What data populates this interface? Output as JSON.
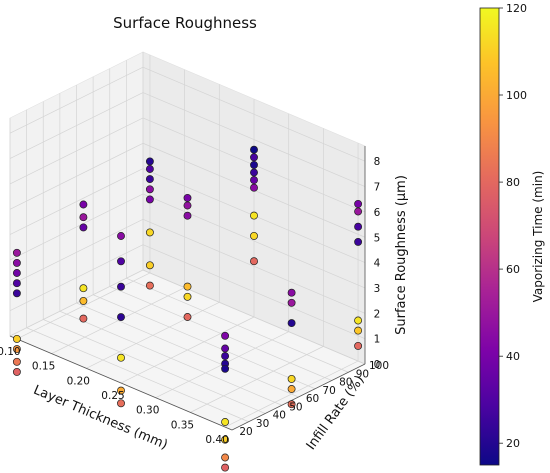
{
  "chart_data": {
    "type": "scatter3d",
    "title": "Surface Roughness",
    "xlabel": "Layer Thickness (mm)",
    "ylabel": "Infill Rate (%)",
    "zlabel": "Surface Roughness (μm)",
    "colorbar_label": "Vaporizing Time (min)",
    "xlim": [
      0.09,
      0.41
    ],
    "ylim": [
      20,
      100
    ],
    "zlim": [
      0,
      8.6
    ],
    "clim": [
      15,
      120
    ],
    "x_ticks": [
      "0.10",
      "0.15",
      "0.20",
      "0.25",
      "0.30",
      "0.35",
      "0.40"
    ],
    "y_ticks": [
      "20",
      "30",
      "40",
      "50",
      "60",
      "70",
      "80",
      "90",
      "100"
    ],
    "z_ticks": [
      "0",
      "1",
      "2",
      "3",
      "4",
      "5",
      "6",
      "7",
      "8"
    ],
    "c_ticks": [
      "20",
      "40",
      "60",
      "80",
      "100",
      "120"
    ],
    "colormap": "plasma",
    "grid": true,
    "points": [
      {
        "x": 0.1,
        "y": 20,
        "z": 3.4,
        "c": 50
      },
      {
        "x": 0.1,
        "y": 20,
        "z": 3.0,
        "c": 45
      },
      {
        "x": 0.1,
        "y": 20,
        "z": 2.6,
        "c": 38
      },
      {
        "x": 0.1,
        "y": 20,
        "z": 2.2,
        "c": 30
      },
      {
        "x": 0.1,
        "y": 20,
        "z": 1.8,
        "c": 25
      },
      {
        "x": 0.1,
        "y": 20,
        "z": 0.0,
        "c": 110
      },
      {
        "x": 0.1,
        "y": 20,
        "z": -0.4,
        "c": 95
      },
      {
        "x": 0.1,
        "y": 20,
        "z": -0.9,
        "c": 85
      },
      {
        "x": 0.1,
        "y": 20,
        "z": -1.3,
        "c": 78
      },
      {
        "x": 0.1,
        "y": 60,
        "z": 4.0,
        "c": 40
      },
      {
        "x": 0.1,
        "y": 60,
        "z": 3.5,
        "c": 50
      },
      {
        "x": 0.1,
        "y": 60,
        "z": 3.1,
        "c": 35
      },
      {
        "x": 0.1,
        "y": 60,
        "z": 0.7,
        "c": 115
      },
      {
        "x": 0.1,
        "y": 60,
        "z": 0.2,
        "c": 105
      },
      {
        "x": 0.1,
        "y": 60,
        "z": -0.5,
        "c": 80
      },
      {
        "x": 0.1,
        "y": 100,
        "z": 4.4,
        "c": 20
      },
      {
        "x": 0.1,
        "y": 100,
        "z": 4.1,
        "c": 30
      },
      {
        "x": 0.1,
        "y": 100,
        "z": 3.7,
        "c": 25
      },
      {
        "x": 0.1,
        "y": 100,
        "z": 3.3,
        "c": 45
      },
      {
        "x": 0.1,
        "y": 100,
        "z": 2.9,
        "c": 40
      },
      {
        "x": 0.1,
        "y": 100,
        "z": 1.6,
        "c": 112
      },
      {
        "x": 0.1,
        "y": 100,
        "z": 0.3,
        "c": 110
      },
      {
        "x": 0.1,
        "y": 100,
        "z": -0.5,
        "c": 82
      },
      {
        "x": 0.25,
        "y": 20,
        "z": 5.8,
        "c": 45
      },
      {
        "x": 0.25,
        "y": 20,
        "z": 4.8,
        "c": 30
      },
      {
        "x": 0.25,
        "y": 20,
        "z": 3.8,
        "c": 25
      },
      {
        "x": 0.25,
        "y": 20,
        "z": 2.6,
        "c": 22
      },
      {
        "x": 0.25,
        "y": 20,
        "z": 1.0,
        "c": 115
      },
      {
        "x": 0.25,
        "y": 20,
        "z": -0.3,
        "c": 100
      },
      {
        "x": 0.25,
        "y": 20,
        "z": -0.8,
        "c": 82
      },
      {
        "x": 0.25,
        "y": 60,
        "z": 6.0,
        "c": 40
      },
      {
        "x": 0.25,
        "y": 60,
        "z": 5.7,
        "c": 48
      },
      {
        "x": 0.25,
        "y": 60,
        "z": 5.3,
        "c": 45
      },
      {
        "x": 0.25,
        "y": 60,
        "z": 2.5,
        "c": 105
      },
      {
        "x": 0.25,
        "y": 60,
        "z": 2.1,
        "c": 112
      },
      {
        "x": 0.25,
        "y": 60,
        "z": 1.3,
        "c": 80
      },
      {
        "x": 0.25,
        "y": 100,
        "z": 6.6,
        "c": 15
      },
      {
        "x": 0.25,
        "y": 100,
        "z": 6.3,
        "c": 28
      },
      {
        "x": 0.25,
        "y": 100,
        "z": 6.0,
        "c": 18
      },
      {
        "x": 0.25,
        "y": 100,
        "z": 5.7,
        "c": 25
      },
      {
        "x": 0.25,
        "y": 100,
        "z": 5.4,
        "c": 35
      },
      {
        "x": 0.25,
        "y": 100,
        "z": 5.1,
        "c": 45
      },
      {
        "x": 0.25,
        "y": 100,
        "z": 4.0,
        "c": 115
      },
      {
        "x": 0.25,
        "y": 100,
        "z": 3.2,
        "c": 112
      },
      {
        "x": 0.25,
        "y": 100,
        "z": 2.2,
        "c": 80
      },
      {
        "x": 0.4,
        "y": 20,
        "z": 3.6,
        "c": 42
      },
      {
        "x": 0.4,
        "y": 20,
        "z": 3.1,
        "c": 35
      },
      {
        "x": 0.4,
        "y": 20,
        "z": 2.8,
        "c": 25
      },
      {
        "x": 0.4,
        "y": 20,
        "z": 2.5,
        "c": 20
      },
      {
        "x": 0.4,
        "y": 20,
        "z": 2.3,
        "c": 18
      },
      {
        "x": 0.4,
        "y": 20,
        "z": 0.2,
        "c": 115
      },
      {
        "x": 0.4,
        "y": 20,
        "z": -0.5,
        "c": 110
      },
      {
        "x": 0.4,
        "y": 20,
        "z": -1.2,
        "c": 90
      },
      {
        "x": 0.4,
        "y": 20,
        "z": -1.6,
        "c": 78
      },
      {
        "x": 0.4,
        "y": 60,
        "z": 4.0,
        "c": 45
      },
      {
        "x": 0.4,
        "y": 60,
        "z": 3.6,
        "c": 50
      },
      {
        "x": 0.4,
        "y": 60,
        "z": 2.8,
        "c": 20
      },
      {
        "x": 0.4,
        "y": 60,
        "z": 0.6,
        "c": 112
      },
      {
        "x": 0.4,
        "y": 60,
        "z": 0.2,
        "c": 100
      },
      {
        "x": 0.4,
        "y": 60,
        "z": -0.4,
        "c": 82
      },
      {
        "x": 0.4,
        "y": 100,
        "z": 6.2,
        "c": 40
      },
      {
        "x": 0.4,
        "y": 100,
        "z": 5.9,
        "c": 50
      },
      {
        "x": 0.4,
        "y": 100,
        "z": 5.3,
        "c": 28
      },
      {
        "x": 0.4,
        "y": 100,
        "z": 4.7,
        "c": 25
      },
      {
        "x": 0.4,
        "y": 100,
        "z": 1.6,
        "c": 115
      },
      {
        "x": 0.4,
        "y": 100,
        "z": 1.2,
        "c": 108
      },
      {
        "x": 0.4,
        "y": 100,
        "z": 0.6,
        "c": 80
      }
    ]
  }
}
